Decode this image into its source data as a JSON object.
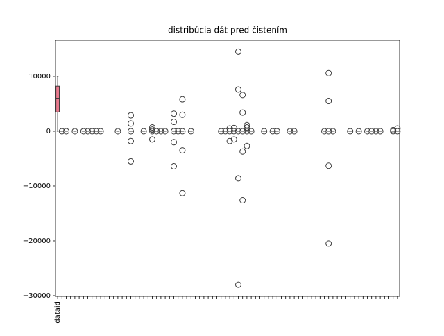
{
  "chart_data": {
    "type": "box",
    "title": "distribúcia dát pred čistením",
    "color": "#e8798d",
    "categories": [
      "dataid",
      null,
      null,
      null,
      null,
      null,
      null,
      null,
      null,
      null,
      null,
      null,
      null,
      null,
      null,
      null,
      null,
      null,
      null,
      null,
      null,
      null,
      null,
      null,
      null,
      null,
      null,
      null,
      null,
      null,
      null,
      null,
      null,
      null,
      null,
      null,
      null,
      null,
      null,
      null,
      null,
      null,
      null,
      null,
      null,
      null,
      null,
      null,
      null,
      null,
      null,
      null,
      null,
      null,
      null,
      null,
      null,
      null,
      null,
      null,
      null,
      null,
      null,
      null,
      null,
      null,
      null,
      null,
      null,
      null,
      null,
      null,
      null,
      null,
      null,
      null,
      null,
      null,
      null,
      null
    ],
    "boxes": [
      {
        "min": 0,
        "q1": 3500,
        "median": 6000,
        "q3": 8200,
        "max": 10000,
        "fliers": []
      },
      {
        "min": 0,
        "q1": 0,
        "median": 0,
        "q3": 0,
        "max": 0,
        "fliers": [
          0
        ]
      },
      {
        "min": 0,
        "q1": 0,
        "median": 0,
        "q3": 0,
        "max": 0,
        "fliers": [
          0
        ]
      },
      null,
      {
        "min": 0,
        "q1": 0,
        "median": 0,
        "q3": 0,
        "max": 0,
        "fliers": [
          0
        ]
      },
      null,
      {
        "min": 0,
        "q1": 0,
        "median": 0,
        "q3": 0,
        "max": 0,
        "fliers": [
          0
        ]
      },
      {
        "min": 0,
        "q1": 0,
        "median": 0,
        "q3": 0,
        "max": 0,
        "fliers": [
          0
        ]
      },
      {
        "min": 0,
        "q1": 0,
        "median": 0,
        "q3": 0,
        "max": 0,
        "fliers": [
          0
        ]
      },
      {
        "min": 0,
        "q1": 0,
        "median": 0,
        "q3": 0,
        "max": 0,
        "fliers": [
          0
        ]
      },
      {
        "min": 0,
        "q1": 0,
        "median": 0,
        "q3": 0,
        "max": 0,
        "fliers": [
          0
        ]
      },
      null,
      null,
      null,
      {
        "min": 0,
        "q1": 0,
        "median": 0,
        "q3": 0,
        "max": 0,
        "fliers": [
          0
        ]
      },
      null,
      null,
      {
        "min": 0,
        "q1": 0,
        "median": 0,
        "q3": 0,
        "max": 0,
        "fliers": [
          2900,
          1400,
          0,
          -1800,
          -5500
        ]
      },
      null,
      null,
      {
        "min": 0,
        "q1": 0,
        "median": 0,
        "q3": 0,
        "max": 0,
        "fliers": [
          0
        ]
      },
      null,
      {
        "min": 0,
        "q1": 0,
        "median": 0,
        "q3": 0,
        "max": 0,
        "fliers": [
          700,
          300,
          0,
          -1500
        ]
      },
      {
        "min": 0,
        "q1": 0,
        "median": 0,
        "q3": 0,
        "max": 0,
        "fliers": [
          0
        ]
      },
      {
        "min": 0,
        "q1": 0,
        "median": 0,
        "q3": 0,
        "max": 0,
        "fliers": [
          0
        ]
      },
      {
        "min": 0,
        "q1": 0,
        "median": 0,
        "q3": 0,
        "max": 0,
        "fliers": [
          0
        ]
      },
      null,
      {
        "min": 0,
        "q1": 0,
        "median": 0,
        "q3": 0,
        "max": 0,
        "fliers": [
          3200,
          1700,
          0,
          -2000,
          -6400
        ]
      },
      {
        "min": 0,
        "q1": 0,
        "median": 0,
        "q3": 0,
        "max": 0,
        "fliers": [
          0
        ]
      },
      {
        "min": 0,
        "q1": 0,
        "median": 0,
        "q3": 0,
        "max": 0,
        "fliers": [
          5800,
          3000,
          0,
          -3500,
          -11300
        ]
      },
      null,
      {
        "min": 0,
        "q1": 0,
        "median": 0,
        "q3": 0,
        "max": 0,
        "fliers": [
          0
        ]
      },
      null,
      null,
      null,
      null,
      null,
      null,
      {
        "min": 0,
        "q1": 0,
        "median": 0,
        "q3": 0,
        "max": 0,
        "fliers": [
          0
        ]
      },
      {
        "min": 0,
        "q1": 0,
        "median": 0,
        "q3": 0,
        "max": 0,
        "fliers": [
          0
        ]
      },
      {
        "min": 0,
        "q1": 0,
        "median": 0,
        "q3": 0,
        "max": 0,
        "fliers": [
          500,
          0,
          -1800
        ]
      },
      {
        "min": 0,
        "q1": 0,
        "median": 0,
        "q3": 0,
        "max": 0,
        "fliers": [
          600,
          0,
          -1500
        ]
      },
      {
        "min": 0,
        "q1": 0,
        "median": 0,
        "q3": 0,
        "max": 0,
        "fliers": [
          14500,
          7600,
          0,
          -8600,
          -28000
        ]
      },
      {
        "min": 0,
        "q1": 0,
        "median": 0,
        "q3": 0,
        "max": 0,
        "fliers": [
          6600,
          3400,
          0,
          -3700,
          -12600
        ]
      },
      {
        "min": 0,
        "q1": 0,
        "median": 0,
        "q3": 0,
        "max": 0,
        "fliers": [
          1100,
          700,
          0,
          -2700
        ]
      },
      {
        "min": 0,
        "q1": 0,
        "median": 0,
        "q3": 0,
        "max": 0,
        "fliers": [
          0
        ]
      },
      null,
      null,
      {
        "min": 0,
        "q1": 0,
        "median": 0,
        "q3": 0,
        "max": 0,
        "fliers": [
          0
        ]
      },
      null,
      {
        "min": 0,
        "q1": 0,
        "median": 0,
        "q3": 0,
        "max": 0,
        "fliers": [
          0
        ]
      },
      {
        "min": 0,
        "q1": 0,
        "median": 0,
        "q3": 0,
        "max": 0,
        "fliers": [
          0
        ]
      },
      null,
      null,
      {
        "min": 0,
        "q1": 0,
        "median": 0,
        "q3": 0,
        "max": 0,
        "fliers": [
          0
        ]
      },
      {
        "min": 0,
        "q1": 0,
        "median": 0,
        "q3": 0,
        "max": 0,
        "fliers": [
          0
        ]
      },
      null,
      null,
      null,
      null,
      null,
      null,
      {
        "min": 0,
        "q1": 0,
        "median": 0,
        "q3": 0,
        "max": 0,
        "fliers": [
          0
        ]
      },
      {
        "min": 0,
        "q1": 0,
        "median": 0,
        "q3": 0,
        "max": 0,
        "fliers": [
          10600,
          5500,
          0,
          -6300,
          -20500
        ]
      },
      {
        "min": 0,
        "q1": 0,
        "median": 0,
        "q3": 0,
        "max": 0,
        "fliers": [
          0
        ]
      },
      null,
      null,
      null,
      {
        "min": 0,
        "q1": 0,
        "median": 0,
        "q3": 0,
        "max": 0,
        "fliers": [
          0
        ]
      },
      null,
      {
        "min": 0,
        "q1": 0,
        "median": 0,
        "q3": 0,
        "max": 0,
        "fliers": [
          0
        ]
      },
      null,
      {
        "min": 0,
        "q1": 0,
        "median": 0,
        "q3": 0,
        "max": 0,
        "fliers": [
          0
        ]
      },
      {
        "min": 0,
        "q1": 0,
        "median": 0,
        "q3": 0,
        "max": 0,
        "fliers": [
          0
        ]
      },
      {
        "min": 0,
        "q1": 0,
        "median": 0,
        "q3": 0,
        "max": 0,
        "fliers": [
          0
        ]
      },
      {
        "min": 0,
        "q1": 0,
        "median": 0,
        "q3": 0,
        "max": 0,
        "fliers": [
          0
        ]
      },
      null,
      null,
      {
        "min": 0,
        "q1": 0,
        "median": 0,
        "q3": 0,
        "max": 0,
        "fliers": [
          200,
          0
        ]
      },
      {
        "min": 0,
        "q1": 0,
        "median": 0,
        "q3": 0,
        "max": 0,
        "fliers": [
          500,
          0
        ]
      }
    ],
    "ylim": [
      -30130,
      16580
    ],
    "yticks": [
      {
        "value": -30000,
        "label": "−30000"
      },
      {
        "value": -20000,
        "label": "−20000"
      },
      {
        "value": -10000,
        "label": "−10000"
      },
      0,
      10000
    ]
  }
}
